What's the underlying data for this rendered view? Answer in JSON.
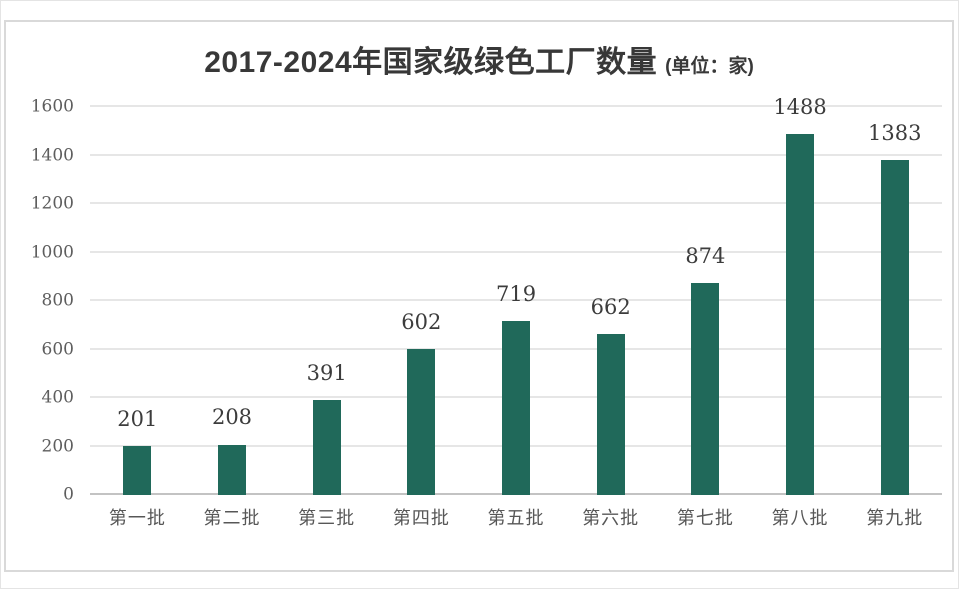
{
  "chart": {
    "title": "2017-2024年国家级绿色工厂数量",
    "unit_label": "(单位：家)"
  },
  "chart_data": {
    "type": "bar",
    "title": "2017-2024年国家级绿色工厂数量",
    "subtitle": "(单位：家)",
    "unit": "家",
    "categories": [
      "第一批",
      "第二批",
      "第三批",
      "第四批",
      "第五批",
      "第六批",
      "第七批",
      "第八批",
      "第九批"
    ],
    "values": [
      201,
      208,
      391,
      602,
      719,
      662,
      874,
      1488,
      1383
    ],
    "xlabel": "",
    "ylabel": "",
    "ylim": [
      0,
      1600
    ],
    "yticks": [
      0,
      200,
      400,
      600,
      800,
      1000,
      1200,
      1400,
      1600
    ],
    "grid": true,
    "grid_direction": "horizontal",
    "legend_position": "none",
    "data_labels": true
  },
  "colors": {
    "bar": "#20695a",
    "grid": "#e6e6e6",
    "axis": "#c3c3c3",
    "panel_border": "#d9d9d9",
    "title": "#383838",
    "tick": "#5d5d5d",
    "xlabel": "#575757",
    "value": "#3c3c3c",
    "background": "#ffffff"
  }
}
